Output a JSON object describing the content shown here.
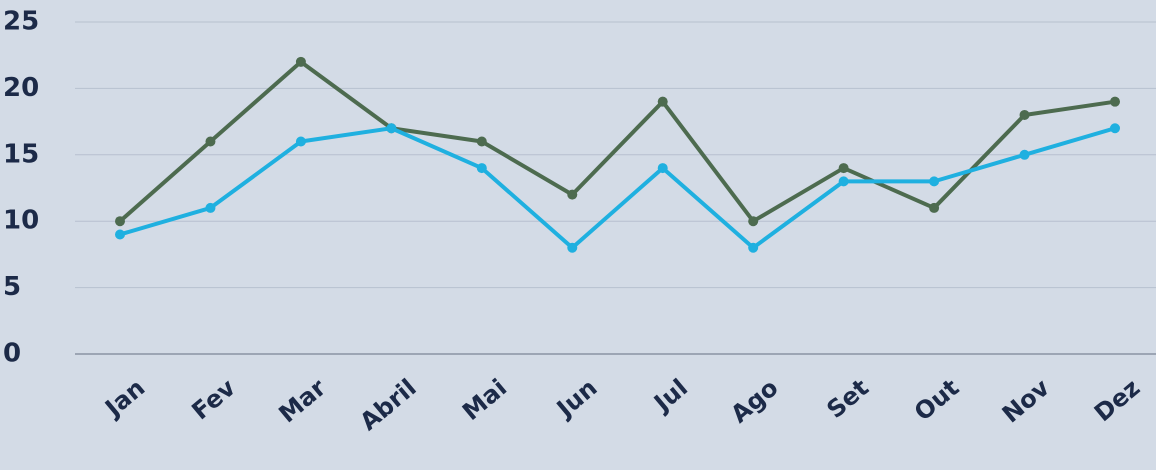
{
  "chart_data": {
    "type": "line",
    "categories": [
      "Jan",
      "Fev",
      "Mar",
      "Abril",
      "Mai",
      "Jun",
      "Jul",
      "Ago",
      "Set",
      "Out",
      "Nov",
      "Dez"
    ],
    "series": [
      {
        "color": "#4d6b4f",
        "values": [
          10,
          16,
          22,
          17,
          16,
          12,
          19,
          10,
          14,
          11,
          18,
          19
        ]
      },
      {
        "color": "#1fb0e0",
        "values": [
          9,
          11,
          16,
          17,
          14,
          8,
          14,
          8,
          13,
          13,
          15,
          17
        ]
      }
    ],
    "ylim": [
      0,
      25
    ],
    "yticks": [
      0,
      5,
      10,
      15,
      20,
      25
    ],
    "grid": true
  }
}
